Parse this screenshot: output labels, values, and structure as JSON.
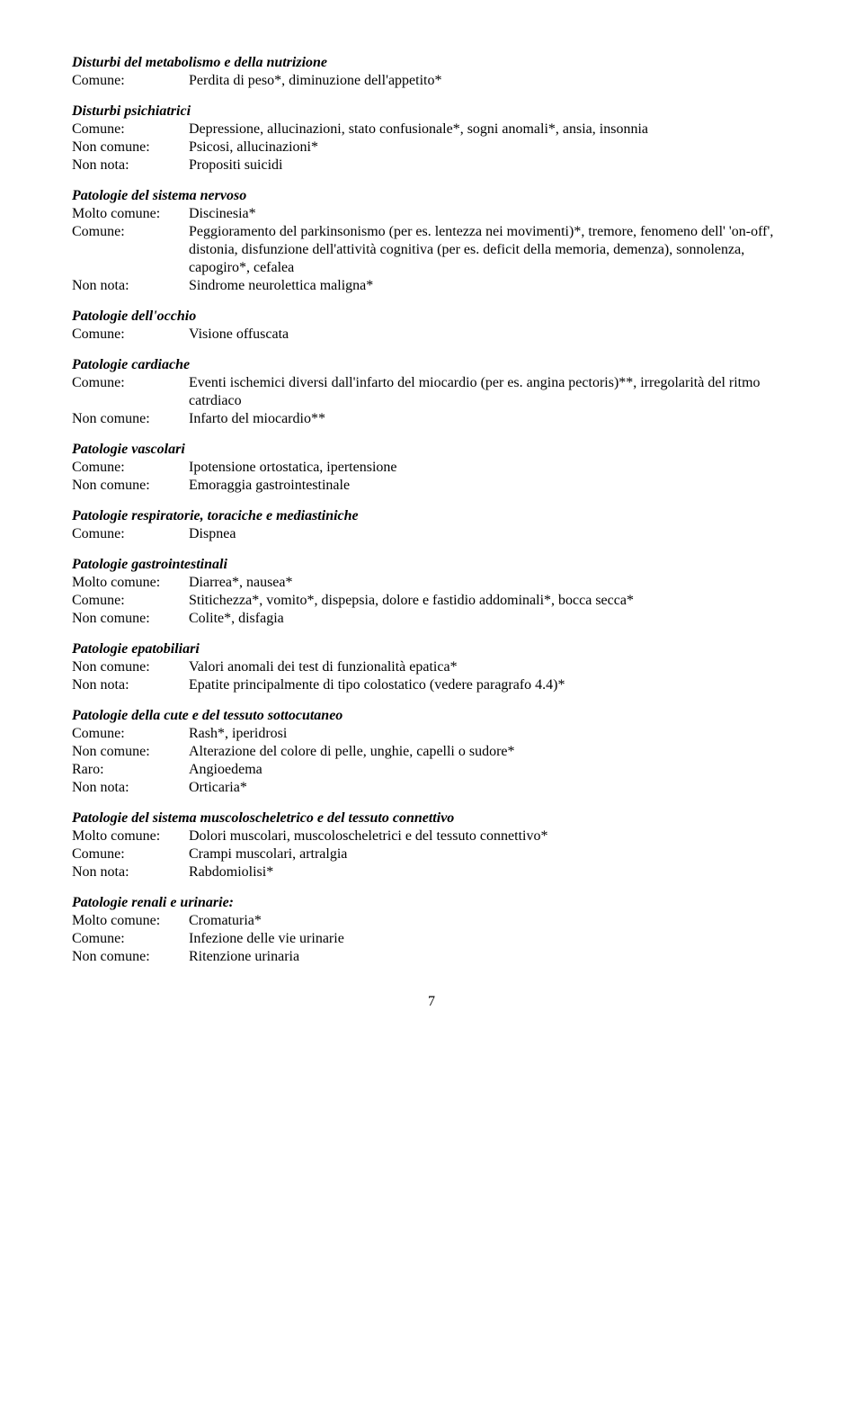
{
  "sections": [
    {
      "heading": "Disturbi del metabolismo e della nutrizione",
      "entries": [
        {
          "label": "Comune:",
          "value": "Perdita di peso*, diminuzione dell'appetito*"
        }
      ]
    },
    {
      "heading": "Disturbi psichiatrici",
      "entries": [
        {
          "label": "Comune:",
          "value": "Depressione, allucinazioni, stato confusionale*, sogni anomali*, ansia, insonnia"
        },
        {
          "label": "Non comune:",
          "value": "Psicosi, allucinazioni*"
        },
        {
          "label": "Non nota:",
          "value": "Propositi suicidi"
        }
      ]
    },
    {
      "heading": "Patologie del sistema nervoso",
      "entries": [
        {
          "label": "Molto comune:",
          "value": "Discinesia*"
        },
        {
          "label": "Comune:",
          "value": "Peggioramento del parkinsonismo (per es. lentezza nei movimenti)*, tremore, fenomeno dell' 'on-off', distonia, disfunzione dell'attività cognitiva (per es. deficit della memoria, demenza), sonnolenza, capogiro*, cefalea"
        },
        {
          "label": "Non nota:",
          "value": "Sindrome neurolettica maligna*"
        }
      ]
    },
    {
      "heading": " Patologie dell'occhio",
      "entries": [
        {
          "label": "Comune:",
          "value": "Visione offuscata"
        }
      ]
    },
    {
      "heading": "Patologie cardiache",
      "entries": [
        {
          "label": "Comune:",
          "value": "Eventi ischemici diversi dall'infarto del miocardio (per es. angina pectoris)**, irregolarità del ritmo catrdiaco"
        },
        {
          "label": "Non comune:",
          "value": "Infarto del miocardio**"
        }
      ]
    },
    {
      "heading": "Patologie vascolari",
      "entries": [
        {
          "label": "Comune:",
          "value": "Ipotensione ortostatica, ipertensione"
        },
        {
          "label": "Non comune:",
          "value": "Emoraggia gastrointestinale"
        }
      ]
    },
    {
      "heading": "Patologie respiratorie, toraciche e mediastiniche",
      "entries": [
        {
          "label": "Comune:",
          "value": "Dispnea"
        }
      ]
    },
    {
      "heading": "Patologie gastrointestinali",
      "entries": [
        {
          "label": "Molto comune:",
          "value": "Diarrea*, nausea*"
        },
        {
          "label": "Comune:",
          "value": "Stitichezza*, vomito*, dispepsia, dolore e fastidio addominali*, bocca secca*"
        },
        {
          "label": "Non comune:",
          "value": "Colite*, disfagia"
        }
      ]
    },
    {
      "heading": "Patologie epatobiliari",
      "entries": [
        {
          "label": "Non comune:",
          "value": "Valori anomali dei test di funzionalità epatica*"
        },
        {
          "label": "Non nota:",
          "value": "Epatite principalmente di tipo colostatico (vedere paragrafo 4.4)*"
        }
      ]
    },
    {
      "heading": "Patologie della cute e del tessuto sottocutaneo",
      "entries": [
        {
          "label": "Comune:",
          "value": "Rash*, iperidrosi"
        },
        {
          "label": "Non comune:",
          "value": "Alterazione del colore di pelle, unghie, capelli o sudore*"
        },
        {
          "label": "Raro:",
          "value": "Angioedema"
        },
        {
          "label": "Non nota:",
          "value": "Orticaria*"
        }
      ]
    },
    {
      "heading": "Patologie del sistema muscoloscheletrico e del tessuto connettivo",
      "entries": [
        {
          "label": "Molto comune:",
          "value": "Dolori muscolari, muscoloscheletrici e del tessuto connettivo*"
        },
        {
          "label": "Comune:",
          "value": "Crampi muscolari, artralgia"
        },
        {
          "label": "Non nota:",
          "value": "Rabdomiolisi*"
        }
      ]
    },
    {
      "heading": "Patologie renali e urinarie:",
      "entries": [
        {
          "label": "Molto comune:",
          "value": "Cromaturia*"
        },
        {
          "label": "Comune:",
          "value": "Infezione delle vie urinarie"
        },
        {
          "label": "Non comune:",
          "value": "Ritenzione urinaria"
        }
      ]
    }
  ],
  "page_number": "7"
}
